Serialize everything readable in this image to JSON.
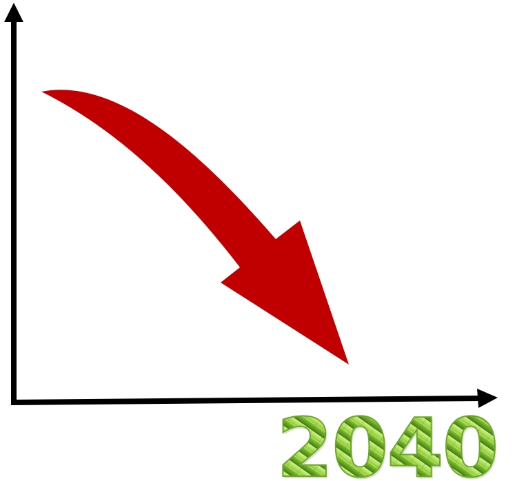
{
  "diagram": {
    "year_label": "2040",
    "trend": "downward",
    "colors": {
      "background": "#ffffff",
      "axis": "#000000",
      "arrow": "#c00000",
      "year_light": "#b7e36a",
      "year_mid": "#7dbf2a",
      "year_dark": "#3f7a12"
    }
  }
}
